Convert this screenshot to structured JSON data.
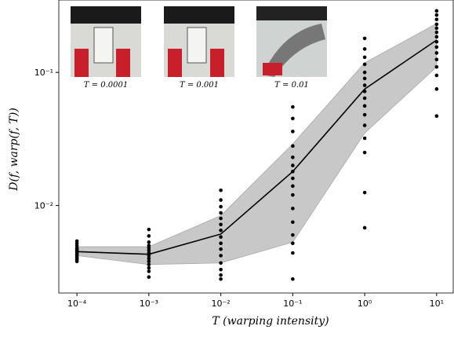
{
  "chart_data": {
    "type": "scatter",
    "x_label": "T (warping intensity)",
    "y_label": "D(f, warp(f, T))",
    "xlog": true,
    "ylog": true,
    "xlim": [
      5.6e-05,
      17
    ],
    "ylim": [
      0.0022,
      0.35
    ],
    "xticks": [
      {
        "value": 0.0001,
        "label": "10⁻⁴"
      },
      {
        "value": 0.001,
        "label": "10⁻³"
      },
      {
        "value": 0.01,
        "label": "10⁻²"
      },
      {
        "value": 0.1,
        "label": "10⁻¹"
      },
      {
        "value": 1,
        "label": "10⁰"
      },
      {
        "value": 10,
        "label": "10¹"
      }
    ],
    "yticks": [
      {
        "value": 0.01,
        "label": "10⁻²"
      },
      {
        "value": 0.1,
        "label": "10⁻¹"
      }
    ],
    "series": [
      {
        "kind": "band",
        "color": "#c8c8c8",
        "x": [
          0.0001,
          0.001,
          0.01,
          0.1,
          1,
          10
        ],
        "upper": [
          0.0049,
          0.0049,
          0.0084,
          0.029,
          0.118,
          0.233
        ],
        "lower": [
          0.0042,
          0.0036,
          0.0037,
          0.0053,
          0.035,
          0.11
        ]
      },
      {
        "kind": "line",
        "color": "#000000",
        "x": [
          0.0001,
          0.001,
          0.01,
          0.1,
          1,
          10
        ],
        "values": [
          0.0045,
          0.0043,
          0.0061,
          0.018,
          0.075,
          0.175
        ]
      },
      {
        "kind": "points",
        "color": "#000000",
        "x": [
          0.0001,
          0.0001,
          0.0001,
          0.0001,
          0.0001,
          0.0001,
          0.0001,
          0.0001,
          0.0001,
          0.0001,
          0.0001,
          0.0001,
          0.0001,
          0.0001,
          0.001,
          0.001,
          0.001,
          0.001,
          0.001,
          0.001,
          0.001,
          0.001,
          0.001,
          0.001,
          0.001,
          0.001,
          0.001,
          0.001,
          0.01,
          0.01,
          0.01,
          0.01,
          0.01,
          0.01,
          0.01,
          0.01,
          0.01,
          0.01,
          0.01,
          0.01,
          0.01,
          0.01,
          0.01,
          0.1,
          0.1,
          0.1,
          0.1,
          0.1,
          0.1,
          0.1,
          0.1,
          0.1,
          0.1,
          0.1,
          0.1,
          0.1,
          0.1,
          0.1,
          0.1,
          1,
          1,
          1,
          1,
          1,
          1,
          1,
          1,
          1,
          1,
          1,
          1,
          1,
          1,
          1,
          1,
          10,
          10,
          10,
          10,
          10,
          10,
          10,
          10,
          10,
          10,
          10,
          10,
          10,
          10,
          10
        ],
        "values": [
          0.0038,
          0.0039,
          0.004,
          0.0041,
          0.0042,
          0.0043,
          0.0044,
          0.0045,
          0.0046,
          0.0047,
          0.0048,
          0.005,
          0.0052,
          0.0054,
          0.0029,
          0.0032,
          0.0034,
          0.0036,
          0.0038,
          0.004,
          0.0042,
          0.0044,
          0.0046,
          0.0048,
          0.005,
          0.0053,
          0.0059,
          0.0066,
          0.0028,
          0.003,
          0.0033,
          0.0037,
          0.0042,
          0.0047,
          0.0052,
          0.0058,
          0.0065,
          0.0072,
          0.008,
          0.0088,
          0.0098,
          0.011,
          0.013,
          0.0028,
          0.0044,
          0.0052,
          0.006,
          0.0075,
          0.0095,
          0.012,
          0.014,
          0.016,
          0.018,
          0.02,
          0.023,
          0.028,
          0.036,
          0.045,
          0.055,
          0.0068,
          0.0125,
          0.025,
          0.032,
          0.04,
          0.048,
          0.056,
          0.064,
          0.072,
          0.08,
          0.09,
          0.1,
          0.115,
          0.13,
          0.15,
          0.18,
          0.047,
          0.075,
          0.095,
          0.11,
          0.125,
          0.14,
          0.155,
          0.17,
          0.185,
          0.2,
          0.215,
          0.23,
          0.25,
          0.27,
          0.29
        ]
      }
    ],
    "insets": [
      {
        "caption": "T = 0.0001"
      },
      {
        "caption": "T = 0.001"
      },
      {
        "caption": "T = 0.01"
      }
    ]
  }
}
